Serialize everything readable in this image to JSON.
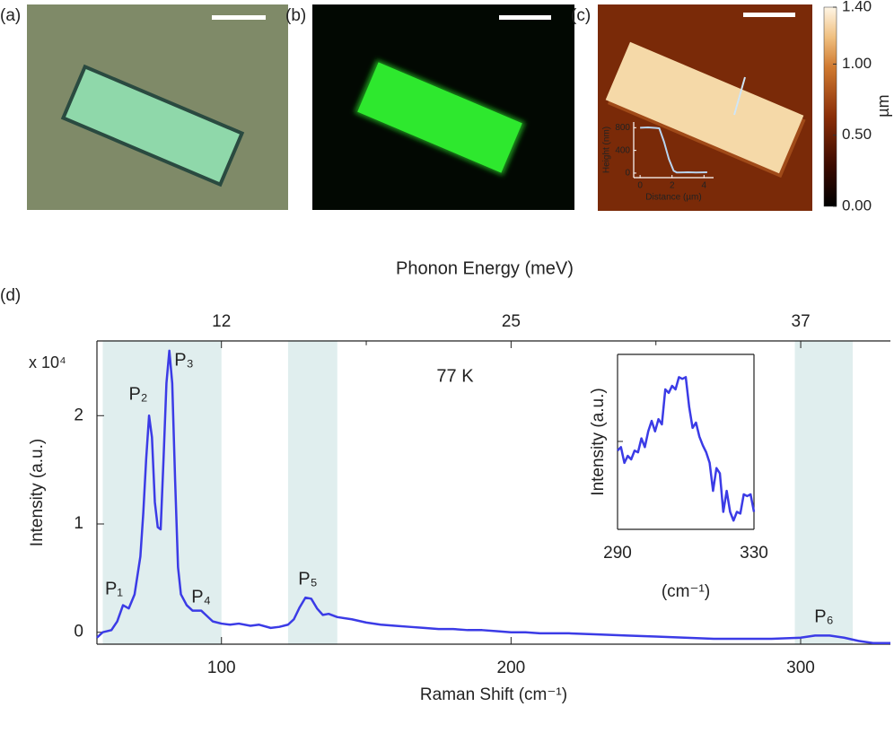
{
  "panels": {
    "labels": [
      "(a)",
      "(b)",
      "(c)",
      "(d)"
    ]
  },
  "colorbar": {
    "label": "µm",
    "lim": [
      0,
      1.4
    ],
    "ticks": [
      {
        "value": 0,
        "label": "0.00"
      },
      {
        "value": 0.5,
        "label": "0.50"
      },
      {
        "value": 1,
        "label": "1.00"
      },
      {
        "value": 1.4,
        "label": "1.40"
      }
    ]
  },
  "chart_data": [
    {
      "type": "line",
      "xlabel": "Distance (µm)",
      "ylabel": "Height (nm)",
      "x": [
        0,
        0.5,
        1,
        1.2,
        1.5,
        1.8,
        2.1,
        2.3,
        3,
        3.5,
        4.2
      ],
      "series": [
        {
          "color": "#b8d4f0",
          "values": [
            800,
            805,
            795,
            790,
            550,
            250,
            40,
            10,
            15,
            10,
            15
          ]
        }
      ],
      "xlim": [
        -0.4,
        4.6
      ],
      "ylim": [
        -80,
        900
      ],
      "xticks": [
        0,
        2,
        4
      ],
      "yticks": [
        0,
        400,
        800
      ]
    },
    {
      "type": "line",
      "xlabel": "Raman Shift (cm⁻¹)",
      "ylabel": "Intensity (a.u.)",
      "x2label": "Phonon Energy (meV)",
      "y_multiplier": "x 10⁴",
      "annotation": "77 K",
      "peak_labels": [
        "P₁",
        "P₂",
        "P₃",
        "P₄",
        "P₅",
        "P₆"
      ],
      "shaded_regions": [
        [
          59,
          100
        ],
        [
          123,
          140
        ],
        [
          298,
          318
        ]
      ],
      "shade_color": "#e0eeee",
      "x": [
        57,
        59,
        62,
        64,
        66,
        68,
        70,
        72,
        73,
        74,
        75,
        76,
        77,
        78,
        79,
        80,
        81,
        82,
        83,
        84,
        85,
        86,
        88,
        90,
        93,
        95,
        97,
        100,
        103,
        106,
        110,
        113,
        117,
        120,
        123,
        125,
        127,
        129,
        131,
        133,
        135,
        137,
        140,
        145,
        150,
        155,
        160,
        165,
        170,
        175,
        180,
        185,
        190,
        195,
        200,
        205,
        210,
        220,
        230,
        240,
        250,
        260,
        270,
        280,
        290,
        300,
        305,
        310,
        315,
        320,
        325,
        331
      ],
      "series": [
        {
          "color": "#3b3be6",
          "values": [
            -0.05,
            0.0,
            0.02,
            0.1,
            0.25,
            0.22,
            0.35,
            0.7,
            1.1,
            1.6,
            2.0,
            1.8,
            1.2,
            0.97,
            0.95,
            1.6,
            2.3,
            2.6,
            2.3,
            1.4,
            0.6,
            0.35,
            0.25,
            0.2,
            0.2,
            0.15,
            0.1,
            0.08,
            0.07,
            0.08,
            0.06,
            0.07,
            0.04,
            0.05,
            0.07,
            0.12,
            0.23,
            0.32,
            0.31,
            0.22,
            0.16,
            0.17,
            0.14,
            0.12,
            0.09,
            0.07,
            0.06,
            0.05,
            0.04,
            0.03,
            0.03,
            0.02,
            0.02,
            0.01,
            0.0,
            0.0,
            -0.01,
            -0.01,
            -0.02,
            -0.03,
            -0.04,
            -0.05,
            -0.06,
            -0.06,
            -0.06,
            -0.05,
            -0.03,
            -0.03,
            -0.05,
            -0.08,
            -0.1,
            -0.1
          ]
        }
      ],
      "xlim": [
        57,
        331
      ],
      "ylim": [
        -0.11,
        2.69
      ],
      "xticks": [
        100,
        200,
        300
      ],
      "yticks": [
        0,
        1,
        2
      ],
      "x2lim": [
        7.07,
        41.04
      ],
      "x2ticks": [
        {
          "value": 12.4,
          "label": "12"
        },
        {
          "value": 24.8,
          "label": "25"
        },
        {
          "value": 37.2,
          "label": "37"
        }
      ],
      "x2minor": [
        18.6,
        31.0
      ]
    },
    {
      "type": "line",
      "xlabel": "(cm⁻¹)",
      "ylabel": "Intensity (a.u.)",
      "x": [
        290,
        291,
        292,
        293,
        294,
        295,
        296,
        297,
        298,
        299,
        300,
        301,
        302,
        303,
        304,
        305,
        306,
        307,
        308,
        309,
        310,
        311,
        312,
        313,
        314,
        315,
        316,
        317,
        318,
        319,
        320,
        321,
        322,
        323,
        324,
        325,
        326,
        327,
        328,
        329,
        330
      ],
      "series": [
        {
          "color": "#3b3be6",
          "values": [
            0.45,
            0.47,
            0.38,
            0.42,
            0.4,
            0.45,
            0.44,
            0.52,
            0.47,
            0.56,
            0.62,
            0.56,
            0.63,
            0.6,
            0.8,
            0.78,
            0.82,
            0.8,
            0.87,
            0.86,
            0.87,
            0.7,
            0.58,
            0.61,
            0.53,
            0.48,
            0.44,
            0.38,
            0.22,
            0.35,
            0.32,
            0.1,
            0.22,
            0.1,
            0.05,
            0.1,
            0.09,
            0.2,
            0.19,
            0.2,
            0.1
          ]
        }
      ],
      "xlim": [
        290,
        330
      ],
      "ylim": [
        0,
        1
      ],
      "xticks": [
        290,
        330
      ]
    }
  ]
}
